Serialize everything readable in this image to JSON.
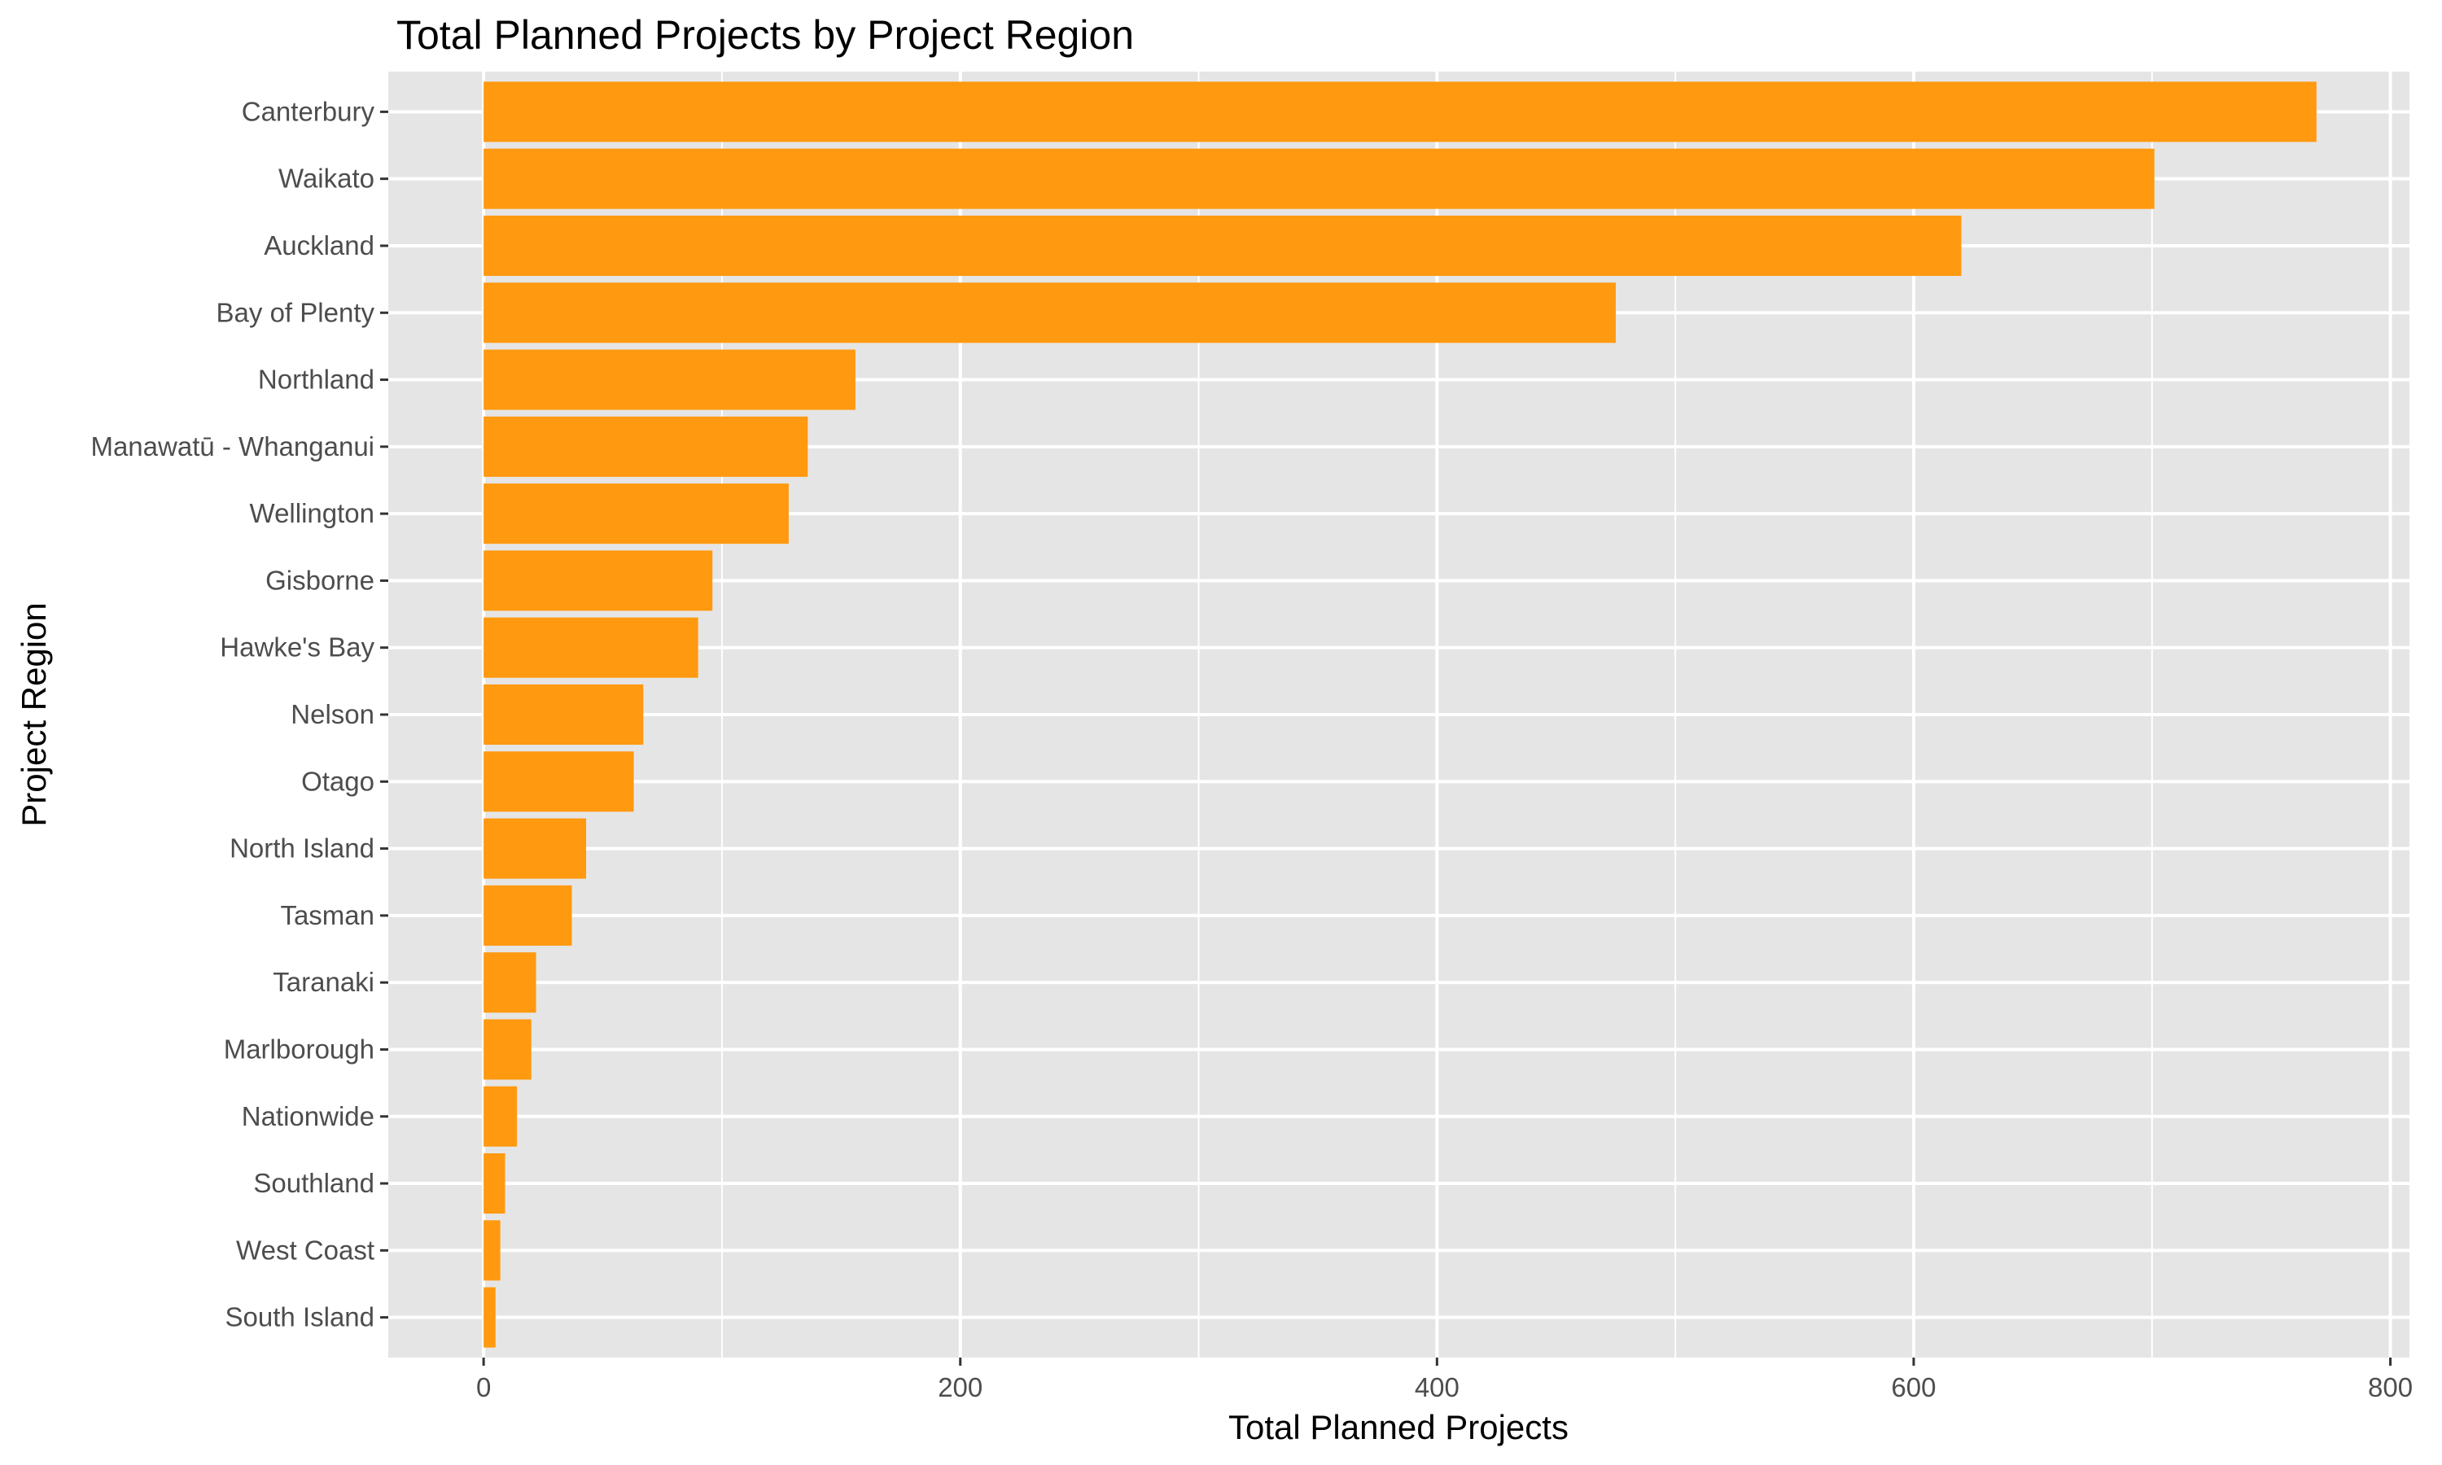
{
  "chart_data": {
    "type": "bar",
    "orientation": "horizontal",
    "title": "Total Planned Projects by Project Region",
    "xlabel": "Total Planned Projects",
    "ylabel": "Project Region",
    "categories": [
      "Canterbury",
      "Waikato",
      "Auckland",
      "Bay of Plenty",
      "Northland",
      "Manawatū - Whanganui",
      "Wellington",
      "Gisborne",
      "Hawke's Bay",
      "Nelson",
      "Otago",
      "North Island",
      "Tasman",
      "Taranaki",
      "Marlborough",
      "Nationwide",
      "Southland",
      "West Coast",
      "South Island"
    ],
    "values": [
      769,
      701,
      620,
      475,
      156,
      136,
      128,
      96,
      90,
      67,
      63,
      43,
      37,
      22,
      20,
      14,
      9,
      7,
      5
    ],
    "xlim": [
      -40,
      808
    ],
    "xticks": [
      0,
      200,
      400,
      600,
      800
    ],
    "xtick_labels": [
      "0",
      "200",
      "400",
      "600",
      "800"
    ],
    "grid": true,
    "colors": {
      "bar": "#FF9910",
      "panel_background": "#E5E5E5",
      "grid_line": "#FFFFFF",
      "tick": "#333333",
      "tick_text": "#4D4D4D"
    }
  }
}
